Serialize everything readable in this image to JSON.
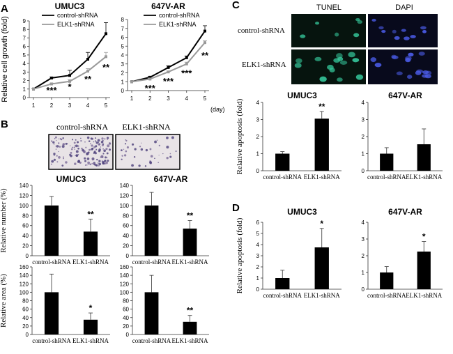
{
  "panels": {
    "A": "A",
    "B": "B",
    "C": "C",
    "D": "D"
  },
  "x_unit": "(day)",
  "legend": {
    "control": "control-shRNA",
    "elk1": "ELK1-shRNA"
  },
  "micro_labels": {
    "tunel": "TUNEL",
    "dapi": "DAPI",
    "row1": "control-shRNA",
    "row2": "ELK1-shRNA"
  },
  "colors": {
    "control_line": "#000000",
    "elk1_line": "#999999",
    "bar": "#000000",
    "tunel_cell": "#35c79a",
    "dapi_cell": "#4a5be6",
    "micro_bg": "#0a1410"
  },
  "chart_data": [
    {
      "id": "A1",
      "type": "line",
      "title": "UMUC3",
      "ylabel": "Relative cell growth (fold)",
      "x": [
        1,
        2,
        3,
        4,
        5
      ],
      "ylim": [
        0,
        9
      ],
      "yticks": [
        0,
        1,
        2,
        3,
        4,
        5,
        6,
        7,
        8,
        9
      ],
      "series": [
        {
          "name": "control-shRNA",
          "values": [
            1.0,
            2.3,
            2.6,
            4.5,
            7.5
          ],
          "err": [
            0.05,
            0.1,
            0.6,
            0.8,
            1.3
          ]
        },
        {
          "name": "ELK1-shRNA",
          "values": [
            1.0,
            1.6,
            1.9,
            3.1,
            4.8
          ],
          "err": [
            0.05,
            0.1,
            0.2,
            0.3,
            0.5
          ]
        }
      ],
      "annotations": [
        {
          "x": 2,
          "y": 0.9,
          "text": "***"
        },
        {
          "x": 3,
          "y": 1.3,
          "text": "*"
        },
        {
          "x": 4,
          "y": 2.2,
          "text": "**"
        },
        {
          "x": 5,
          "y": 3.6,
          "text": "**"
        }
      ]
    },
    {
      "id": "A2",
      "type": "line",
      "title": "647V-AR",
      "ylabel": "",
      "x": [
        1,
        2,
        3,
        4,
        5
      ],
      "ylim": [
        0,
        8
      ],
      "yticks": [
        0,
        1,
        2,
        3,
        4,
        5,
        6,
        7,
        8
      ],
      "series": [
        {
          "name": "control-shRNA",
          "values": [
            1.0,
            1.5,
            2.6,
            3.7,
            6.7
          ],
          "err": [
            0.05,
            0.1,
            0.2,
            0.2,
            0.6
          ]
        },
        {
          "name": "ELK1-shRNA",
          "values": [
            1.0,
            1.3,
            2.1,
            3.0,
            5.4
          ],
          "err": [
            0.05,
            0.1,
            0.1,
            0.2,
            0.2
          ]
        }
      ],
      "annotations": [
        {
          "x": 2,
          "y": 0.3,
          "text": "***"
        },
        {
          "x": 3,
          "y": 1.1,
          "text": "***"
        },
        {
          "x": 4,
          "y": 2.0,
          "text": "***"
        },
        {
          "x": 5,
          "y": 4.0,
          "text": "**"
        }
      ]
    },
    {
      "id": "B1",
      "type": "bar",
      "title": "UMUC3",
      "ylabel": "Relative number (%)",
      "categories": [
        "control-shRNA",
        "ELK1-shRNA"
      ],
      "values": [
        100,
        48
      ],
      "err": [
        18,
        25
      ],
      "ylim": [
        0,
        140
      ],
      "yticks": [
        0,
        20,
        40,
        60,
        80,
        100,
        120,
        140
      ],
      "sig": [
        "",
        "**"
      ]
    },
    {
      "id": "B2",
      "type": "bar",
      "title": "647V-AR",
      "ylabel": "",
      "categories": [
        "control-shRNA",
        "ELK1-shRNA"
      ],
      "values": [
        100,
        54
      ],
      "err": [
        26,
        16
      ],
      "ylim": [
        0,
        140
      ],
      "yticks": [
        0,
        20,
        40,
        60,
        80,
        100,
        120,
        140
      ],
      "sig": [
        "",
        "**"
      ]
    },
    {
      "id": "B3",
      "type": "bar",
      "title": "",
      "ylabel": "Relative area (%)",
      "categories": [
        "control-shRNA",
        "ELK1-shRNA"
      ],
      "values": [
        100,
        35
      ],
      "err": [
        43,
        16
      ],
      "ylim": [
        0,
        160
      ],
      "yticks": [
        0,
        20,
        40,
        60,
        80,
        100,
        120,
        140,
        160
      ],
      "sig": [
        "",
        "*"
      ]
    },
    {
      "id": "B4",
      "type": "bar",
      "title": "",
      "ylabel": "",
      "categories": [
        "control-shRNA",
        "ELK1-shRNA"
      ],
      "values": [
        100,
        30
      ],
      "err": [
        40,
        15
      ],
      "ylim": [
        0,
        160
      ],
      "yticks": [
        0,
        20,
        40,
        60,
        80,
        100,
        120,
        140,
        160
      ],
      "sig": [
        "",
        "**"
      ]
    },
    {
      "id": "C1",
      "type": "bar",
      "title": "UMUC3",
      "ylabel": "Relative apoptosis (fold)",
      "categories": [
        "control-shRNA",
        "ELK1-shRNA"
      ],
      "values": [
        1.0,
        3.05
      ],
      "err": [
        0.12,
        0.42
      ],
      "ylim": [
        0,
        4
      ],
      "yticks": [
        0,
        1,
        2,
        3,
        4
      ],
      "sig": [
        "",
        "**"
      ]
    },
    {
      "id": "C2",
      "type": "bar",
      "title": "647V-AR",
      "ylabel": "",
      "categories": [
        "control-shRNA",
        "ELK1-shRNA"
      ],
      "values": [
        1.0,
        1.55
      ],
      "err": [
        0.35,
        0.9
      ],
      "ylim": [
        0,
        4
      ],
      "yticks": [
        0,
        1,
        2,
        3,
        4
      ],
      "sig": [
        "",
        ""
      ]
    },
    {
      "id": "D1",
      "type": "bar",
      "title": "UMUC3",
      "ylabel": "Relative apoptosis (fold)",
      "categories": [
        "control-shRNA",
        "ELK1-shRNA"
      ],
      "values": [
        1.0,
        3.75
      ],
      "err": [
        0.7,
        1.7
      ],
      "ylim": [
        0,
        6
      ],
      "yticks": [
        0,
        1,
        2,
        3,
        4,
        5,
        6
      ],
      "sig": [
        "",
        "*"
      ]
    },
    {
      "id": "D2",
      "type": "bar",
      "title": "647V-AR",
      "ylabel": "",
      "categories": [
        "control-shRNA",
        "ELK1-shRNA"
      ],
      "values": [
        1.0,
        2.25
      ],
      "err": [
        0.35,
        0.6
      ],
      "ylim": [
        0,
        4
      ],
      "yticks": [
        0,
        1,
        2,
        3,
        4
      ],
      "sig": [
        "",
        "*"
      ]
    }
  ]
}
